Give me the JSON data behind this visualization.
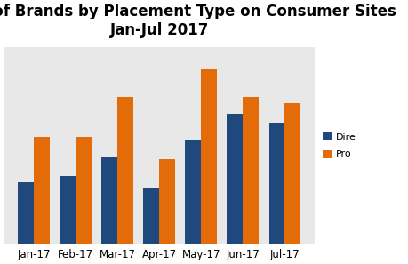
{
  "title_line1": "Number of Brands by Placement Type on Consumer Sites",
  "title_line2": "Jan-Jul 2017",
  "categories": [
    "Jan-17",
    "Feb-17",
    "Mar-17",
    "Apr-17",
    "May-17",
    "Jun-17",
    "Jul-17"
  ],
  "direct": [
    22,
    24,
    31,
    20,
    37,
    46,
    43
  ],
  "programmatic": [
    38,
    38,
    52,
    30,
    62,
    52,
    50
  ],
  "direct_color": "#1F497D",
  "programmatic_color": "#E36C09",
  "legend_direct": "Dire",
  "legend_prog": "Pro",
  "background_color": "#FFFFFF",
  "plot_bg_color": "#E8E8E8",
  "grid_color": "#FFFFFF",
  "title_fontsize": 12,
  "tick_fontsize": 8.5,
  "ylim": [
    0,
    70
  ],
  "bar_width": 0.38
}
